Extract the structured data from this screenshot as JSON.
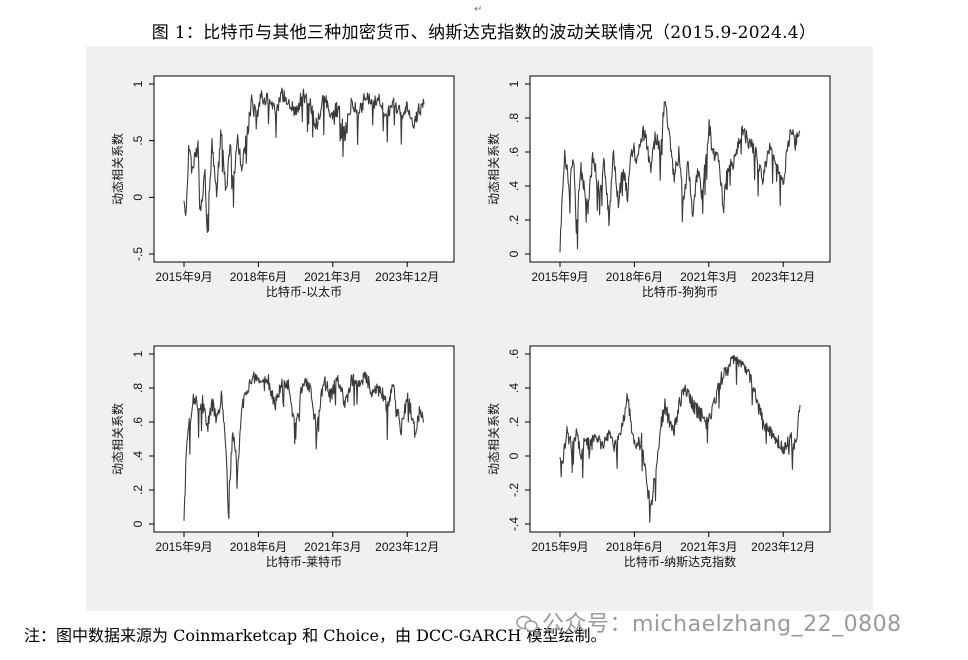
{
  "title": "图 1：比特币与其他三种加密货币、纳斯达克指数的波动关联情况（2015.9-2024.4）",
  "note": "注：图中数据来源为 Coinmarketcap 和 Choice，由 DCC-GARCH 模型绘制。",
  "watermark": "公众号：michaelzhang_22_0808",
  "line_color": "#3a3a3a",
  "chart_data": [
    {
      "type": "line",
      "xlabel": "比特币-以太币",
      "ylabel": "动态相关系数",
      "x_ticks": [
        "2015年9月",
        "2018年6月",
        "2021年3月",
        "2023年12月"
      ],
      "y_ticks": [
        -0.5,
        0,
        0.5,
        1
      ],
      "y_tick_labels": [
        "-.5",
        "0",
        ".5",
        "1"
      ],
      "ylim": [
        -0.5,
        1
      ],
      "xlim": [
        "2015-09",
        "2024-04"
      ],
      "anchors": [
        [
          "2015-09",
          0.0
        ],
        [
          "2015-10",
          -0.15
        ],
        [
          "2015-11",
          0.45
        ],
        [
          "2016-01",
          0.3
        ],
        [
          "2016-03",
          0.45
        ],
        [
          "2016-04",
          -0.1
        ],
        [
          "2016-06",
          0.2
        ],
        [
          "2016-07",
          -0.3
        ],
        [
          "2016-09",
          0.45
        ],
        [
          "2016-11",
          0.05
        ],
        [
          "2017-01",
          0.6
        ],
        [
          "2017-03",
          0.05
        ],
        [
          "2017-05",
          0.5
        ],
        [
          "2017-06",
          0.1
        ],
        [
          "2017-08",
          0.5
        ],
        [
          "2017-10",
          0.25
        ],
        [
          "2017-12",
          0.55
        ],
        [
          "2018-02",
          0.85
        ],
        [
          "2018-04",
          0.7
        ],
        [
          "2018-06",
          0.9
        ],
        [
          "2018-09",
          0.85
        ],
        [
          "2018-12",
          0.75
        ],
        [
          "2019-03",
          0.9
        ],
        [
          "2019-06",
          0.85
        ],
        [
          "2019-09",
          0.75
        ],
        [
          "2019-12",
          0.9
        ],
        [
          "2020-03",
          0.82
        ],
        [
          "2020-06",
          0.62
        ],
        [
          "2020-09",
          0.9
        ],
        [
          "2020-12",
          0.7
        ],
        [
          "2021-03",
          0.8
        ],
        [
          "2021-06",
          0.55
        ],
        [
          "2021-09",
          0.85
        ],
        [
          "2021-12",
          0.75
        ],
        [
          "2022-03",
          0.9
        ],
        [
          "2022-06",
          0.82
        ],
        [
          "2022-09",
          0.88
        ],
        [
          "2022-12",
          0.7
        ],
        [
          "2023-03",
          0.85
        ],
        [
          "2023-06",
          0.72
        ],
        [
          "2023-09",
          0.8
        ],
        [
          "2023-12",
          0.65
        ],
        [
          "2024-02",
          0.78
        ],
        [
          "2024-04",
          0.82
        ]
      ]
    },
    {
      "type": "line",
      "xlabel": "比特币-狗狗币",
      "ylabel": "动态相关系数",
      "x_ticks": [
        "2015年9月",
        "2018年6月",
        "2021年3月",
        "2023年12月"
      ],
      "y_ticks": [
        0,
        0.2,
        0.4,
        0.6,
        0.8,
        1
      ],
      "y_tick_labels": [
        "0",
        ".2",
        ".4",
        ".6",
        ".8",
        "1"
      ],
      "ylim": [
        0,
        1
      ],
      "xlim": [
        "2015-09",
        "2024-04"
      ],
      "anchors": [
        [
          "2015-09",
          0.02
        ],
        [
          "2015-10",
          0.35
        ],
        [
          "2015-11",
          0.6
        ],
        [
          "2016-01",
          0.4
        ],
        [
          "2016-03",
          0.55
        ],
        [
          "2016-04",
          0.15
        ],
        [
          "2016-06",
          0.5
        ],
        [
          "2016-09",
          0.25
        ],
        [
          "2016-11",
          0.6
        ],
        [
          "2017-02",
          0.35
        ],
        [
          "2017-04",
          0.55
        ],
        [
          "2017-06",
          0.2
        ],
        [
          "2017-08",
          0.6
        ],
        [
          "2017-10",
          0.3
        ],
        [
          "2017-12",
          0.5
        ],
        [
          "2018-02",
          0.35
        ],
        [
          "2018-04",
          0.65
        ],
        [
          "2018-06",
          0.55
        ],
        [
          "2018-09",
          0.75
        ],
        [
          "2018-12",
          0.5
        ],
        [
          "2019-02",
          0.7
        ],
        [
          "2019-04",
          0.6
        ],
        [
          "2019-06",
          0.9
        ],
        [
          "2019-08",
          0.7
        ],
        [
          "2019-10",
          0.45
        ],
        [
          "2019-12",
          0.6
        ],
        [
          "2020-02",
          0.3
        ],
        [
          "2020-04",
          0.55
        ],
        [
          "2020-06",
          0.2
        ],
        [
          "2020-08",
          0.5
        ],
        [
          "2020-10",
          0.35
        ],
        [
          "2021-01",
          0.75
        ],
        [
          "2021-03",
          0.6
        ],
        [
          "2021-05",
          0.55
        ],
        [
          "2021-07",
          0.3
        ],
        [
          "2021-09",
          0.5
        ],
        [
          "2021-12",
          0.55
        ],
        [
          "2022-03",
          0.75
        ],
        [
          "2022-06",
          0.65
        ],
        [
          "2022-09",
          0.6
        ],
        [
          "2022-12",
          0.45
        ],
        [
          "2023-03",
          0.65
        ],
        [
          "2023-06",
          0.5
        ],
        [
          "2023-09",
          0.45
        ],
        [
          "2023-12",
          0.75
        ],
        [
          "2024-02",
          0.65
        ],
        [
          "2024-04",
          0.72
        ]
      ]
    },
    {
      "type": "line",
      "xlabel": "比特币-莱特币",
      "ylabel": "动态相关系数",
      "x_ticks": [
        "2015年9月",
        "2018年6月",
        "2021年3月",
        "2023年12月"
      ],
      "y_ticks": [
        0,
        0.2,
        0.4,
        0.6,
        0.8,
        1
      ],
      "y_tick_labels": [
        "0",
        ".2",
        ".4",
        ".6",
        ".8",
        "1"
      ],
      "ylim": [
        0,
        1
      ],
      "xlim": [
        "2015-09",
        "2024-04"
      ],
      "anchors": [
        [
          "2015-09",
          0.03
        ],
        [
          "2015-10",
          0.45
        ],
        [
          "2015-11",
          0.55
        ],
        [
          "2016-01",
          0.75
        ],
        [
          "2016-03",
          0.7
        ],
        [
          "2016-05",
          0.72
        ],
        [
          "2016-07",
          0.55
        ],
        [
          "2016-09",
          0.72
        ],
        [
          "2016-11",
          0.6
        ],
        [
          "2017-01",
          0.75
        ],
        [
          "2017-03",
          0.45
        ],
        [
          "2017-04",
          0.1
        ],
        [
          "2017-06",
          0.55
        ],
        [
          "2017-08",
          0.3
        ],
        [
          "2017-10",
          0.7
        ],
        [
          "2017-12",
          0.8
        ],
        [
          "2018-03",
          0.85
        ],
        [
          "2018-06",
          0.8
        ],
        [
          "2018-09",
          0.85
        ],
        [
          "2018-12",
          0.7
        ],
        [
          "2019-03",
          0.85
        ],
        [
          "2019-06",
          0.8
        ],
        [
          "2019-09",
          0.55
        ],
        [
          "2019-12",
          0.85
        ],
        [
          "2020-03",
          0.8
        ],
        [
          "2020-06",
          0.55
        ],
        [
          "2020-09",
          0.85
        ],
        [
          "2020-12",
          0.75
        ],
        [
          "2021-03",
          0.85
        ],
        [
          "2021-06",
          0.7
        ],
        [
          "2021-09",
          0.85
        ],
        [
          "2021-12",
          0.8
        ],
        [
          "2022-03",
          0.88
        ],
        [
          "2022-06",
          0.75
        ],
        [
          "2022-09",
          0.8
        ],
        [
          "2022-12",
          0.7
        ],
        [
          "2023-03",
          0.8
        ],
        [
          "2023-06",
          0.55
        ],
        [
          "2023-09",
          0.75
        ],
        [
          "2023-12",
          0.55
        ],
        [
          "2024-02",
          0.65
        ],
        [
          "2024-04",
          0.6
        ]
      ]
    },
    {
      "type": "line",
      "xlabel": "比特币-纳斯达克指数",
      "ylabel": "动态相关系数",
      "x_ticks": [
        "2015年9月",
        "2018年6月",
        "2021年3月",
        "2023年12月"
      ],
      "y_ticks": [
        -0.4,
        -0.2,
        0,
        0.2,
        0.4,
        0.6
      ],
      "y_tick_labels": [
        "-.4",
        "-.2",
        "0",
        ".2",
        ".4",
        ".6"
      ],
      "ylim": [
        -0.4,
        0.6
      ],
      "xlim": [
        "2015-09",
        "2024-04"
      ],
      "anchors": [
        [
          "2015-09",
          0.0
        ],
        [
          "2015-10",
          -0.05
        ],
        [
          "2015-12",
          0.15
        ],
        [
          "2016-02",
          0.05
        ],
        [
          "2016-04",
          0.15
        ],
        [
          "2016-06",
          0.0
        ],
        [
          "2016-08",
          0.12
        ],
        [
          "2016-10",
          0.05
        ],
        [
          "2016-12",
          0.15
        ],
        [
          "2017-03",
          0.05
        ],
        [
          "2017-06",
          0.12
        ],
        [
          "2017-09",
          0.05
        ],
        [
          "2017-12",
          0.2
        ],
        [
          "2018-02",
          0.35
        ],
        [
          "2018-04",
          0.15
        ],
        [
          "2018-06",
          0.05
        ],
        [
          "2018-08",
          0.1
        ],
        [
          "2018-10",
          -0.15
        ],
        [
          "2018-12",
          -0.3
        ],
        [
          "2019-02",
          -0.1
        ],
        [
          "2019-04",
          0.15
        ],
        [
          "2019-06",
          0.3
        ],
        [
          "2019-08",
          0.2
        ],
        [
          "2019-10",
          0.15
        ],
        [
          "2020-01",
          0.35
        ],
        [
          "2020-03",
          0.4
        ],
        [
          "2020-06",
          0.3
        ],
        [
          "2020-09",
          0.25
        ],
        [
          "2020-12",
          0.2
        ],
        [
          "2021-03",
          0.3
        ],
        [
          "2021-06",
          0.45
        ],
        [
          "2021-09",
          0.5
        ],
        [
          "2021-12",
          0.6
        ],
        [
          "2022-03",
          0.55
        ],
        [
          "2022-06",
          0.5
        ],
        [
          "2022-09",
          0.35
        ],
        [
          "2022-12",
          0.2
        ],
        [
          "2023-03",
          0.15
        ],
        [
          "2023-06",
          0.1
        ],
        [
          "2023-09",
          0.05
        ],
        [
          "2023-12",
          0.1
        ],
        [
          "2024-02",
          0.05
        ],
        [
          "2024-04",
          0.3
        ]
      ]
    }
  ]
}
